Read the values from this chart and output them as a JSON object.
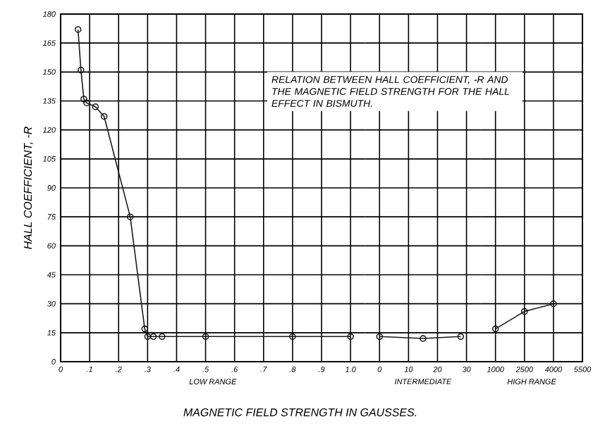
{
  "chart_data": [
    {
      "type": "line",
      "title": "RELATION BETWEEN HALL COEFFICIENT, -R AND THE MAGNETIC FIELD STRENGTH FOR THE HALL EFFECT IN BISMUTH.",
      "ylabel": "HALL COEFFICIENT, -R",
      "xlabel": "LOW RANGE",
      "annotations": [
        "MAGNETIC FIELD STRENGTH IN GAUSSES."
      ],
      "x": [
        0.06,
        0.07,
        0.08,
        0.09,
        0.12,
        0.15,
        0.24,
        0.29,
        0.3,
        0.32,
        0.35,
        0.5,
        0.8,
        1.0
      ],
      "values": [
        172,
        151,
        136,
        134,
        132,
        127,
        75,
        17,
        13,
        13,
        13,
        13,
        13,
        13
      ],
      "color": "#1a1a1a",
      "marker": "circle",
      "line_style": "solid",
      "grid": true,
      "xlim": [
        0,
        1.05
      ],
      "ylim": [
        0,
        180
      ],
      "xticks": [
        0,
        {
          "value": 0.1,
          "label": ".1"
        },
        {
          "value": 0.2,
          "label": ".2"
        },
        {
          "value": 0.3,
          "label": ".3"
        },
        {
          "value": 0.4,
          "label": ".4"
        },
        {
          "value": 0.5,
          "label": ".5"
        },
        {
          "value": 0.6,
          "label": ".6"
        },
        {
          "value": 0.7,
          "label": ".7"
        },
        {
          "value": 0.8,
          "label": ".8"
        },
        {
          "value": 0.9,
          "label": ".9"
        },
        {
          "value": 1.0,
          "label": "1.0"
        }
      ],
      "yticks": [
        0,
        15,
        30,
        45,
        60,
        75,
        90,
        105,
        120,
        135,
        150,
        165,
        180
      ]
    },
    {
      "type": "line",
      "xlabel": "INTERMEDIATE",
      "x": [
        0,
        15,
        28
      ],
      "values": [
        13,
        12,
        13
      ],
      "color": "#1a1a1a",
      "marker": "circle",
      "line_style": "solid",
      "grid": true,
      "tick_labels": "x",
      "xlim": [
        -5,
        35
      ],
      "ylim": [
        0,
        180
      ],
      "xticks": [
        0,
        10,
        20,
        30
      ],
      "yticks": [
        0,
        15,
        30,
        45,
        60,
        75,
        90,
        105,
        120,
        135,
        150,
        165,
        180
      ]
    },
    {
      "type": "line",
      "xlabel": "HIGH RANGE",
      "x": [
        1000,
        2500,
        4000
      ],
      "values": [
        17,
        26,
        30
      ],
      "color": "#1a1a1a",
      "marker": "circle",
      "line_style": "solid",
      "grid": true,
      "tick_labels": "x",
      "xlim": [
        250,
        5500
      ],
      "ylim": [
        0,
        180
      ],
      "xticks": [
        1000,
        2500,
        4000,
        5500
      ],
      "yticks": [
        0,
        15,
        30,
        45,
        60,
        75,
        90,
        105,
        120,
        135,
        150,
        165,
        180
      ]
    }
  ]
}
